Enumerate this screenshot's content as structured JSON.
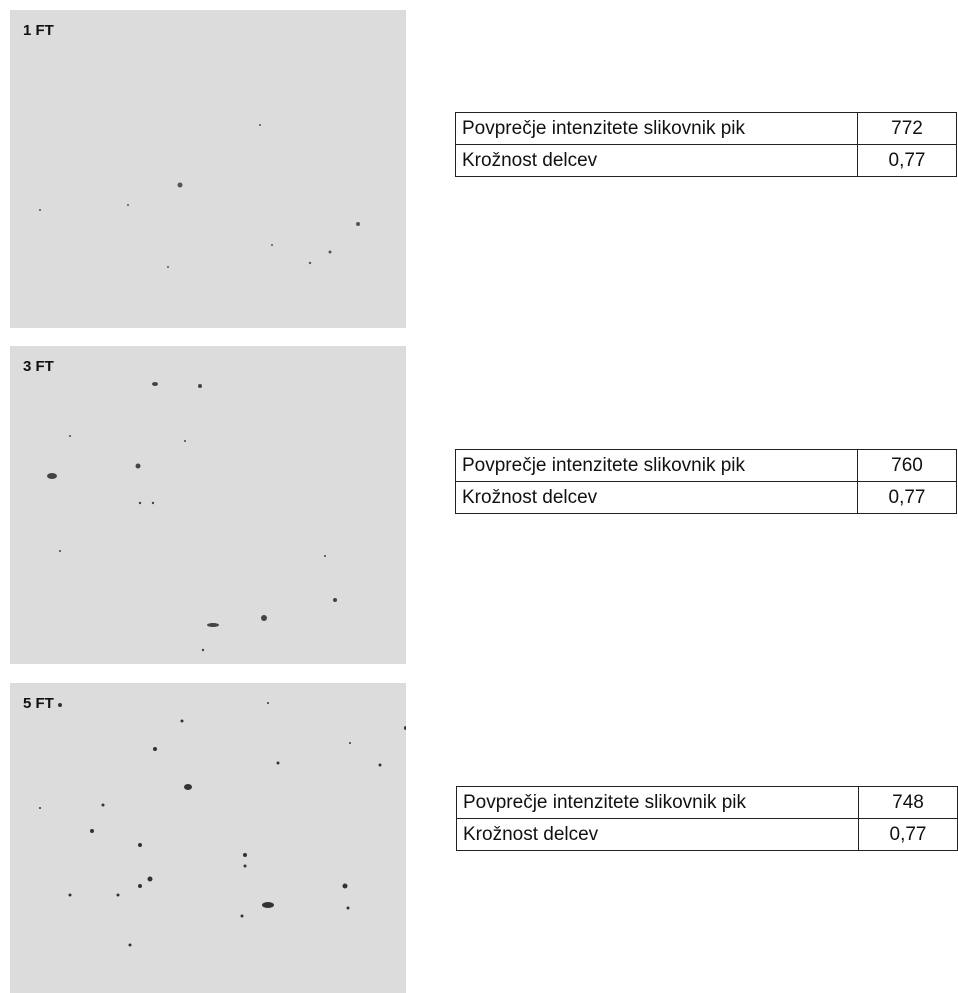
{
  "panels": [
    {
      "label": "1 FT",
      "table": [
        [
          "Povprečje intenzitete slikovnik pik",
          "772"
        ],
        [
          "Krožnost delcev",
          "0,77"
        ]
      ]
    },
    {
      "label": "3 FT",
      "table": [
        [
          "Povprečje intenzitete slikovnik pik",
          "760"
        ],
        [
          "Krožnost delcev",
          "0,77"
        ]
      ]
    },
    {
      "label": "5 FT",
      "table": [
        [
          "Povprečje intenzitete slikovnik pik",
          "748"
        ],
        [
          "Krožnost delcev",
          "0,77"
        ]
      ]
    }
  ]
}
